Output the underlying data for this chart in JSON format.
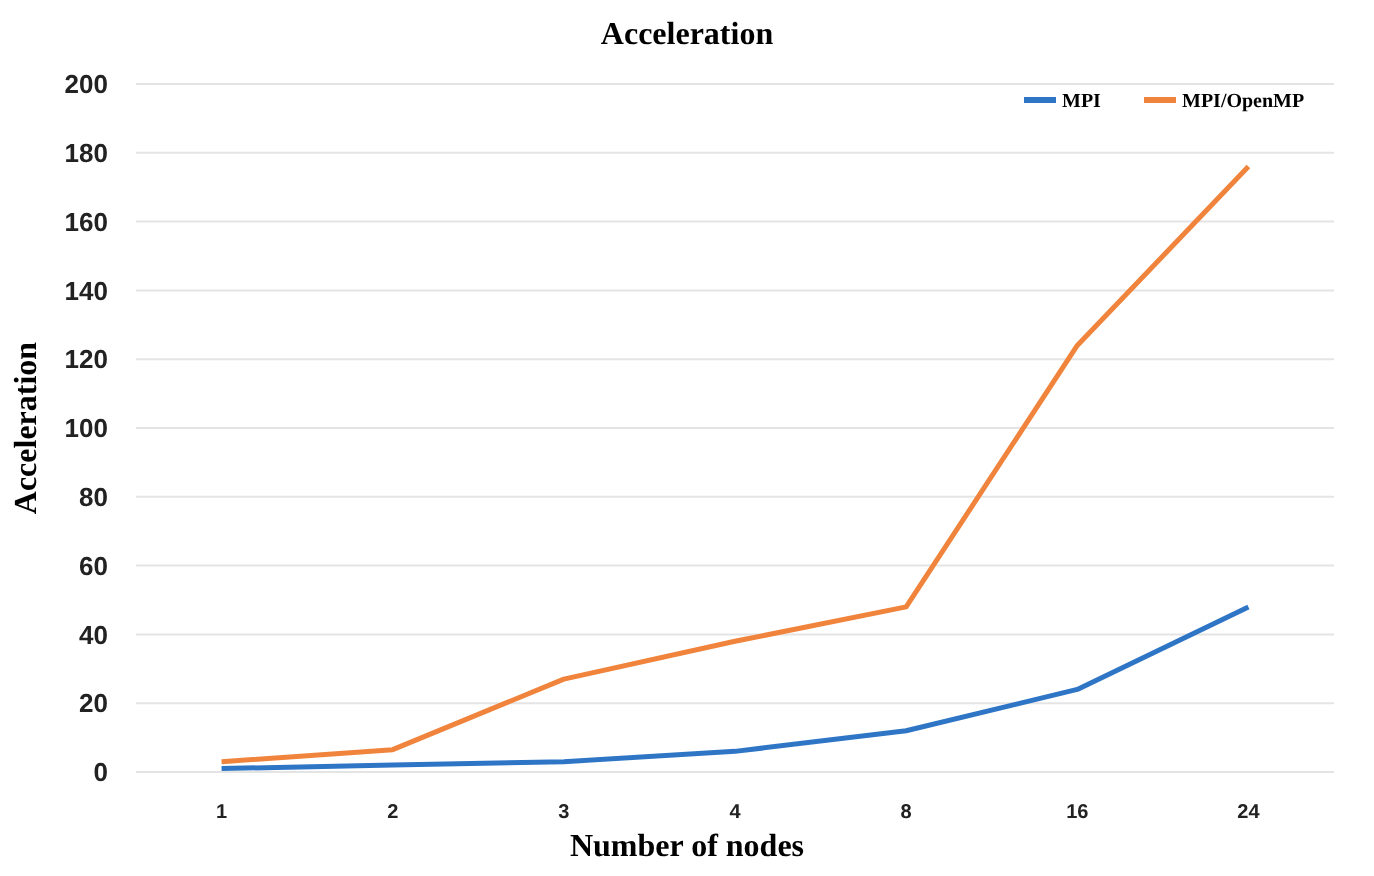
{
  "chart_data": {
    "type": "line",
    "title": "Acceleration",
    "xlabel": "Number of nodes",
    "ylabel": "Acceleration",
    "categories": [
      "1",
      "2",
      "3",
      "4",
      "8",
      "16",
      "24"
    ],
    "series": [
      {
        "name": "MPI",
        "color": "#2e75c6",
        "values": [
          1,
          2,
          3,
          6,
          12,
          24,
          48
        ]
      },
      {
        "name": "MPI/OpenMP",
        "color": "#f0843c",
        "values": [
          3,
          6.5,
          27,
          38,
          48,
          124,
          176
        ]
      }
    ],
    "ylim": [
      0,
      200
    ],
    "yticks": [
      0,
      20,
      40,
      60,
      80,
      100,
      120,
      140,
      160,
      180,
      200
    ],
    "grid": "y",
    "legend": "top right",
    "marker": "none",
    "line_style": "solid"
  }
}
